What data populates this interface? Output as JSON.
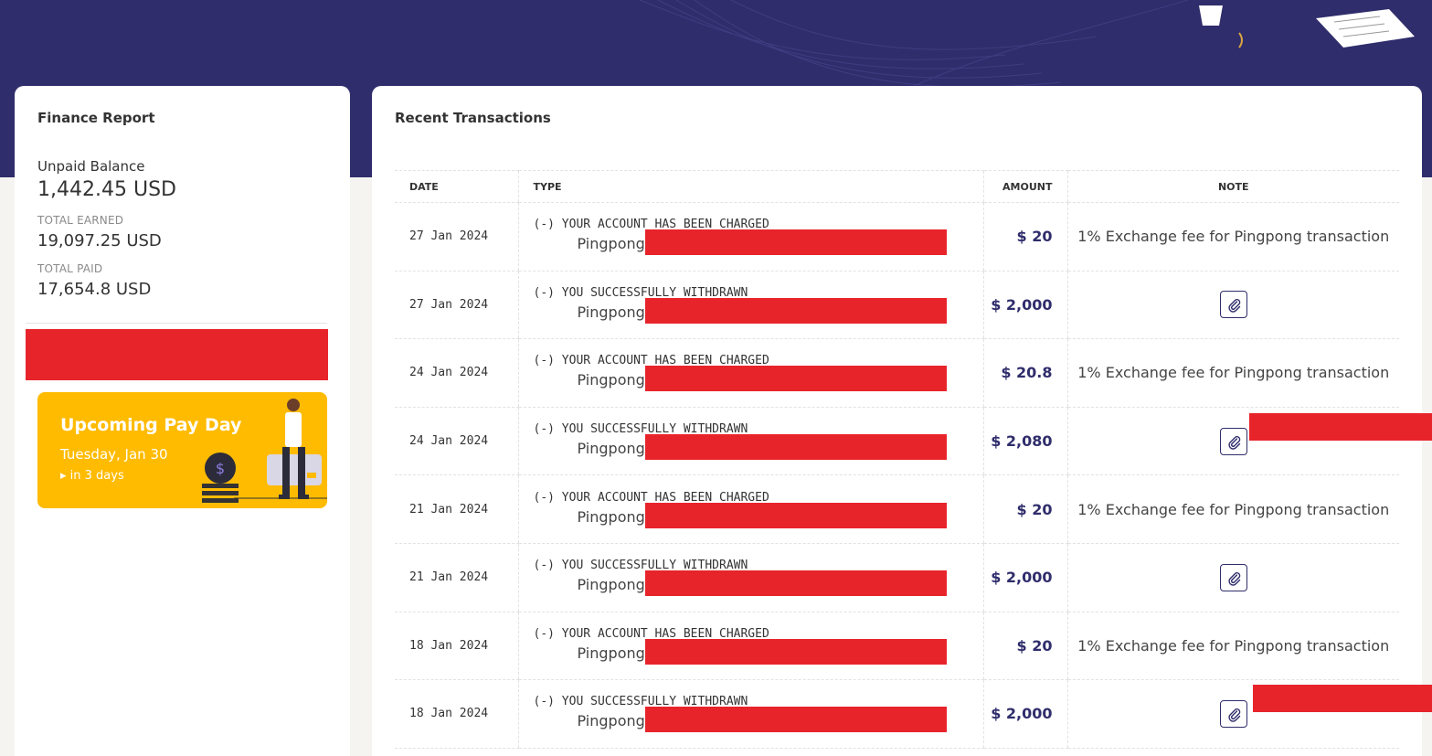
{
  "colors": {
    "banner": "#2f2d6b",
    "accent": "#2f2d6b",
    "payday_bg": "#ffbb00",
    "redaction": "#e8242b"
  },
  "finance": {
    "title": "Finance Report",
    "unpaid_label": "Unpaid Balance",
    "unpaid_value": "1,442.45 USD",
    "earned_label": "TOTAL EARNED",
    "earned_value": "19,097.25 USD",
    "paid_label": "TOTAL PAID",
    "paid_value": "17,654.8 USD"
  },
  "payday": {
    "title": "Upcoming Pay Day",
    "date": "Tuesday, Jan 30",
    "countdown": "in 3 days",
    "countdown_icon": "caret-right-icon"
  },
  "transactions": {
    "title": "Recent Transactions",
    "headers": {
      "date": "DATE",
      "type": "TYPE",
      "amount": "AMOUNT",
      "note": "NOTE"
    },
    "rows": [
      {
        "date": "27 Jan 2024",
        "type": "(-) YOUR ACCOUNT HAS BEEN CHARGED",
        "sub": "Pingpong",
        "amount": "$ 20",
        "note": "1% Exchange fee for Pingpong transaction"
      },
      {
        "date": "27 Jan 2024",
        "type": "(-) YOU SUCCESSFULLY WITHDRAWN",
        "sub": "Pingpong",
        "amount": "$ 2,000",
        "note": ""
      },
      {
        "date": "24 Jan 2024",
        "type": "(-) YOUR ACCOUNT HAS BEEN CHARGED",
        "sub": "Pingpong",
        "amount": "$ 20.8",
        "note": "1% Exchange fee for Pingpong transaction"
      },
      {
        "date": "24 Jan 2024",
        "type": "(-) YOU SUCCESSFULLY WITHDRAWN",
        "sub": "Pingpong",
        "amount": "$ 2,080",
        "note": ""
      },
      {
        "date": "21 Jan 2024",
        "type": "(-) YOUR ACCOUNT HAS BEEN CHARGED",
        "sub": "Pingpong",
        "amount": "$ 20",
        "note": "1% Exchange fee for Pingpong transaction"
      },
      {
        "date": "21 Jan 2024",
        "type": "(-) YOU SUCCESSFULLY WITHDRAWN",
        "sub": "Pingpong",
        "amount": "$ 2,000",
        "note": ""
      },
      {
        "date": "18 Jan 2024",
        "type": "(-) YOUR ACCOUNT HAS BEEN CHARGED",
        "sub": "Pingpong",
        "amount": "$ 20",
        "note": "1% Exchange fee for Pingpong transaction"
      },
      {
        "date": "18 Jan 2024",
        "type": "(-) YOU SUCCESSFULLY WITHDRAWN",
        "sub": "Pingpong",
        "amount": "$ 2,000",
        "note": ""
      }
    ]
  }
}
